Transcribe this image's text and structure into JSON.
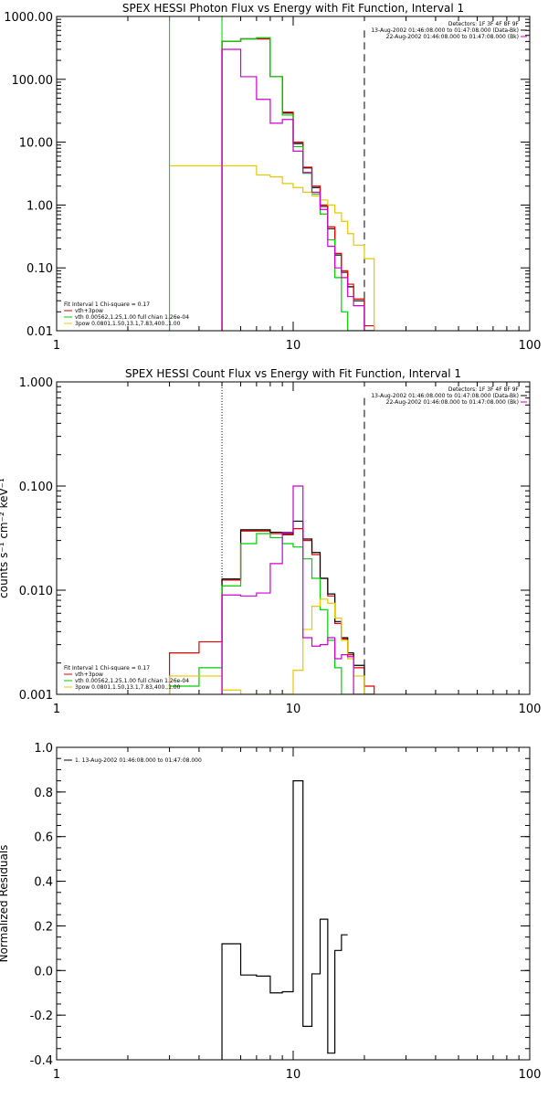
{
  "chart_data": [
    {
      "type": "line",
      "title": "SPEX HESSI Photon Flux vs Energy with Fit Function, Interval 1",
      "xscale": "log",
      "yscale": "log",
      "xlim": [
        1,
        100
      ],
      "ylim": [
        0.01,
        1000
      ],
      "xticks": [
        {
          "v": 1,
          "label": "1"
        },
        {
          "v": 10,
          "label": "10"
        },
        {
          "v": 100,
          "label": "100"
        }
      ],
      "yticks": [
        {
          "v": 0.01,
          "label": "0.01"
        },
        {
          "v": 0.1,
          "label": "0.10"
        },
        {
          "v": 1,
          "label": "1.00"
        },
        {
          "v": 10,
          "label": "10.00"
        },
        {
          "v": 100,
          "label": "100.00"
        },
        {
          "v": 1000,
          "label": "1000.00"
        }
      ],
      "header": [
        {
          "text": "Detectors: 1F 3F 4F 8F 9F",
          "color": "#000000"
        },
        {
          "text": "13-Aug-2002 01:46:08.000 to 01:47:08.000 (Data-Bk)",
          "color": "#000000"
        },
        {
          "text": "22-Aug-2002 01:46:08.000 to 01:47:08.000 (Bk)",
          "color": "#cc00cc"
        }
      ],
      "legend_position": "bottom-left",
      "legend": [
        {
          "text": "Fit Interval 1    Chi-square = 0.17",
          "color": null
        },
        {
          "text": "vth+3pow",
          "color": "#e00000"
        },
        {
          "text": "vth 0.00562,1.25,1.00  full chian 1.26e-04",
          "color": "#00cc00"
        },
        {
          "text": "3pow 0.0801,1.50,13.1,7.83,400.,1.00",
          "color": "#e6c800"
        }
      ],
      "vlines": [
        {
          "x": 3.0,
          "style": "solid",
          "color": "#00cc00",
          "from": 0.01,
          "to": 1000
        },
        {
          "x": 5.0,
          "style": "solid",
          "color": "#00cc00",
          "from": 0.01,
          "to": 1000
        },
        {
          "x": 5.0,
          "style": "dashed",
          "color": "#cc00cc",
          "from": 0.01,
          "to": 400
        },
        {
          "x": 20.0,
          "style": "longdash",
          "color": "#000000",
          "from": 0.01,
          "to": 600
        }
      ],
      "edges": [
        5,
        6,
        7,
        8,
        9,
        10,
        11,
        12,
        13,
        14,
        15,
        16,
        17,
        18,
        20,
        22
      ],
      "series": [
        {
          "role": "data",
          "color": "#000000",
          "x0": 5,
          "values": [
            400,
            440,
            440,
            110,
            29,
            9.5,
            3.9,
            1.9,
            0.95,
            0.42,
            0.16,
            0.085,
            0.05,
            0.03,
            0.01
          ]
        },
        {
          "role": "total",
          "color": "#e00000",
          "x0": 5,
          "values": [
            400,
            440,
            440,
            110,
            30,
            10,
            4.0,
            2.0,
            1.0,
            0.45,
            0.17,
            0.09,
            0.055,
            0.032,
            0.012
          ]
        },
        {
          "role": "thermal",
          "color": "#00cc00",
          "x0": 5,
          "values": [
            400,
            440,
            460,
            110,
            27,
            8.5,
            3.2,
            1.5,
            0.72,
            0.28,
            0.07,
            0.02,
            0.01,
            0.01,
            0.01
          ]
        },
        {
          "role": "powerlaw",
          "color": "#e6c800",
          "start": 3.0,
          "x0": 3,
          "values": [
            4.2,
            4.2,
            3.0,
            2.8,
            2.2,
            1.9,
            1.6,
            1.4,
            1.2,
            1.0,
            0.75,
            0.55,
            0.35,
            0.23,
            0.14,
            0.085,
            0.055,
            0.04,
            0.025,
            0.015,
            0.01
          ]
        },
        {
          "role": "background",
          "color": "#cc00cc",
          "x0": 5,
          "values": [
            300,
            110,
            48,
            20,
            23,
            7.2,
            3.3,
            1.6,
            0.85,
            0.22,
            0.1,
            0.07,
            0.035,
            0.025,
            0.01
          ]
        }
      ]
    },
    {
      "type": "line",
      "title": "SPEX HESSI Count Flux vs Energy with Fit Function, Interval 1",
      "xscale": "log",
      "yscale": "log",
      "xlim": [
        1,
        100
      ],
      "ylim": [
        0.001,
        1
      ],
      "xticks": [
        {
          "v": 1,
          "label": "1"
        },
        {
          "v": 10,
          "label": "10"
        },
        {
          "v": 100,
          "label": "100"
        }
      ],
      "yticks": [
        {
          "v": 0.001,
          "label": "0.001"
        },
        {
          "v": 0.01,
          "label": "0.010"
        },
        {
          "v": 0.1,
          "label": "0.100"
        },
        {
          "v": 1,
          "label": "1.000"
        }
      ],
      "ylabel": "counts s⁻¹ cm⁻² keV⁻¹",
      "header": [
        {
          "text": "Detectors: 1F 3F 4F 8F 9F",
          "color": "#000000"
        },
        {
          "text": "13-Aug-2002 01:46:08.000 to 01:47:08.000 (Data-Bk)",
          "color": "#000000"
        },
        {
          "text": "22-Aug-2002 01:46:08.000 to 01:47:08.000 (Bk)",
          "color": "#cc00cc"
        }
      ],
      "legend_position": "bottom-left",
      "legend": [
        {
          "text": "Fit Interval 1    Chi-square = 0.17",
          "color": null
        },
        {
          "text": "vth+3pow",
          "color": "#e00000"
        },
        {
          "text": "vth 0.00562,1.25,1.00  full chian 1.26e-04",
          "color": "#00cc00"
        },
        {
          "text": "3pow 0.0801,1.50,13.1,7.83,400.,1.00",
          "color": "#e6c800"
        }
      ],
      "vlines": [
        {
          "x": 5.0,
          "style": "dotted",
          "color": "#000000",
          "from": 0.001,
          "to": 1
        },
        {
          "x": 20.0,
          "style": "longdash",
          "color": "#000000",
          "from": 0.001,
          "to": 0.7
        }
      ],
      "edges": [
        3,
        4,
        5,
        6,
        7,
        8,
        9,
        10,
        11,
        12,
        13,
        14,
        15,
        16,
        17,
        18,
        20,
        22
      ],
      "series": [
        {
          "role": "total",
          "color": "#e00000",
          "x0": 3,
          "values": [
            0.0025,
            0.0032,
            0.0125,
            0.037,
            0.037,
            0.035,
            0.034,
            0.039,
            0.03,
            0.022,
            0.013,
            0.0088,
            0.0048,
            0.0034,
            0.0024,
            0.0018,
            0.0012
          ]
        },
        {
          "role": "data",
          "color": "#000000",
          "x0": 5,
          "values": [
            0.0128,
            0.038,
            0.038,
            0.036,
            0.035,
            0.046,
            0.031,
            0.023,
            0.013,
            0.0092,
            0.005,
            0.0035,
            0.0025,
            0.0019,
            0.001
          ]
        },
        {
          "role": "thermal",
          "color": "#00cc00",
          "x0": 3,
          "values": [
            0.0012,
            0.0018,
            0.011,
            0.028,
            0.035,
            0.032,
            0.028,
            0.026,
            0.02,
            0.013,
            0.0065,
            0.0033,
            0.0018,
            0.001,
            0.001,
            0.001,
            0.001
          ]
        },
        {
          "role": "powerlaw",
          "color": "#e6c800",
          "x0": 3,
          "values": [
            0.0015,
            0.0015,
            0.0011,
            0.001,
            0.001,
            0.001,
            0.001,
            0.0017,
            0.0042,
            0.007,
            0.0082,
            0.0075,
            0.0054,
            0.0033,
            0.0022,
            0.0015,
            0.001
          ]
        },
        {
          "role": "background",
          "color": "#cc00cc",
          "x0": 5,
          "values": [
            0.009,
            0.0088,
            0.0094,
            0.018,
            0.036,
            0.1,
            0.0035,
            0.0029,
            0.003,
            0.0035,
            0.0022,
            0.0024,
            0.0023,
            0.001,
            0.001
          ]
        }
      ]
    },
    {
      "type": "line",
      "title": "",
      "xscale": "log",
      "yscale": "linear",
      "xlim": [
        1,
        100
      ],
      "ylim": [
        -0.4,
        1.0
      ],
      "xticks": [
        {
          "v": 1,
          "label": "1"
        },
        {
          "v": 10,
          "label": "10"
        },
        {
          "v": 100,
          "label": "100"
        }
      ],
      "yticks": [
        {
          "v": -0.4,
          "label": "-0.4"
        },
        {
          "v": -0.2,
          "label": "-0.2"
        },
        {
          "v": 0,
          "label": "0.0"
        },
        {
          "v": 0.2,
          "label": "0.2"
        },
        {
          "v": 0.4,
          "label": "0.4"
        },
        {
          "v": 0.6,
          "label": "0.6"
        },
        {
          "v": 0.8,
          "label": "0.8"
        },
        {
          "v": 1.0,
          "label": "1.0"
        }
      ],
      "ylabel": "Normalized Residuals",
      "legend_position": "top-left",
      "legend": [
        {
          "text": "1. 13-Aug-2002 01:46:08.000 to 01:47:08.000",
          "color": "#000000"
        }
      ],
      "edges": [
        5,
        6,
        7,
        8,
        9,
        10,
        11,
        12,
        13,
        14,
        15,
        16,
        17,
        18,
        20
      ],
      "series": [
        {
          "role": "residual",
          "color": "#000000",
          "x0": 5,
          "values": [
            0.12,
            -0.02,
            -0.025,
            -0.1,
            -0.095,
            0.85,
            -0.25,
            -0.015,
            0.23,
            -0.37,
            0.09,
            0.16,
            null,
            null
          ]
        }
      ]
    }
  ]
}
